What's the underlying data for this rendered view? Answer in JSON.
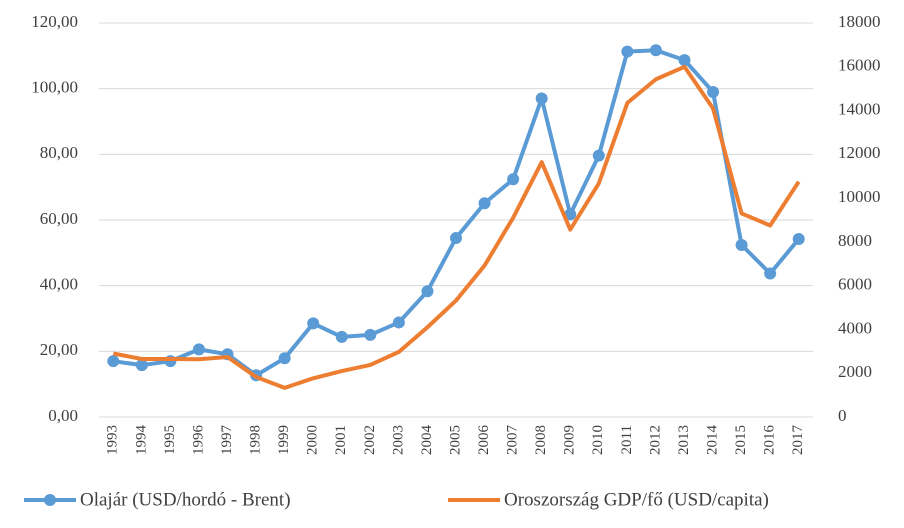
{
  "chart_data": {
    "type": "line",
    "categories": [
      "1993",
      "1994",
      "1995",
      "1996",
      "1997",
      "1998",
      "1999",
      "2000",
      "2001",
      "2002",
      "2003",
      "2004",
      "2005",
      "2006",
      "2007",
      "2008",
      "2009",
      "2010",
      "2011",
      "2012",
      "2013",
      "2014",
      "2015",
      "2016",
      "2017"
    ],
    "series": [
      {
        "name": "Olajár (USD/hordó - Brent)",
        "color": "#5b9bd5",
        "markers": true,
        "values": [
          17.0,
          15.8,
          17.0,
          20.6,
          19.1,
          12.7,
          17.9,
          28.5,
          24.4,
          25.0,
          28.8,
          38.3,
          54.5,
          65.1,
          72.4,
          97.0,
          61.7,
          79.6,
          111.3,
          111.7,
          108.7,
          99.0,
          52.4,
          43.7,
          54.2
        ]
      },
      {
        "name": "Oroszország GDP/fő (USD/capita)",
        "color": "#ed7d31",
        "axis": "y2",
        "markers": false,
        "values": [
          2900,
          2650,
          2650,
          2640,
          2740,
          1830,
          1330,
          1770,
          2100,
          2380,
          2975,
          4100,
          5320,
          6920,
          9100,
          11640,
          8560,
          10670,
          14350,
          15430,
          16000,
          14100,
          9300,
          8750,
          10750
        ]
      }
    ],
    "ylim": [
      0,
      120
    ],
    "yticks": [
      {
        "value": 0,
        "label": "0,00"
      },
      {
        "value": 20,
        "label": "20,00"
      },
      {
        "value": 40,
        "label": "40,00"
      },
      {
        "value": 60,
        "label": "60,00"
      },
      {
        "value": 80,
        "label": "80,00"
      },
      {
        "value": 100,
        "label": "100,00"
      },
      {
        "value": 120,
        "label": "120,00"
      }
    ],
    "y2lim": [
      0,
      18000
    ],
    "y2ticks": [
      0,
      2000,
      4000,
      6000,
      8000,
      10000,
      12000,
      14000,
      16000,
      18000
    ],
    "grid": true,
    "legend": "bottom"
  }
}
